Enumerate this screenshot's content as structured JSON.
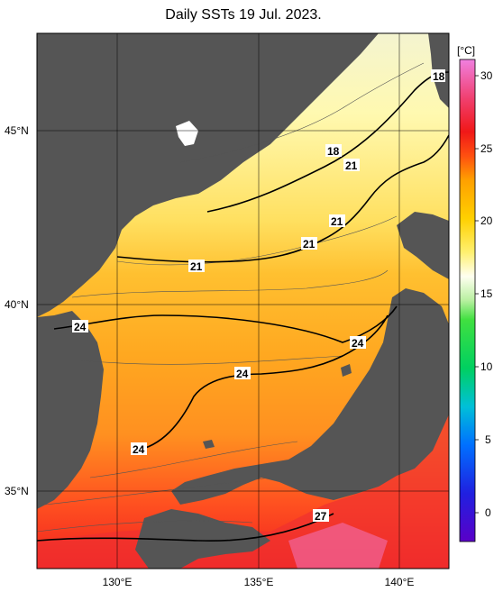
{
  "title": "Daily SSTs 19 Jul. 2023.",
  "map": {
    "lat_labels": [
      "45°N",
      "40°N",
      "35°N"
    ],
    "lon_labels": [
      "130°E",
      "135°E",
      "140°E"
    ],
    "isotherm_labels": [
      "18",
      "18",
      "21",
      "21",
      "21",
      "21",
      "24",
      "24",
      "24",
      "24",
      "27"
    ]
  },
  "colorbar": {
    "unit": "[°C]",
    "ticks": [
      "30",
      "25",
      "20",
      "15",
      "10",
      "5",
      "0"
    ],
    "min": -2,
    "max": 31,
    "colors": [
      "#5a00c8",
      "#2020e0",
      "#0070ff",
      "#00c0d8",
      "#00d060",
      "#40e040",
      "#b8f0a0",
      "#fffff0",
      "#fff070",
      "#ffd000",
      "#ffa000",
      "#ff5010",
      "#f01818",
      "#f04070",
      "#f080e0"
    ]
  },
  "colors": {
    "land": "#555555",
    "frame": "#000000"
  }
}
